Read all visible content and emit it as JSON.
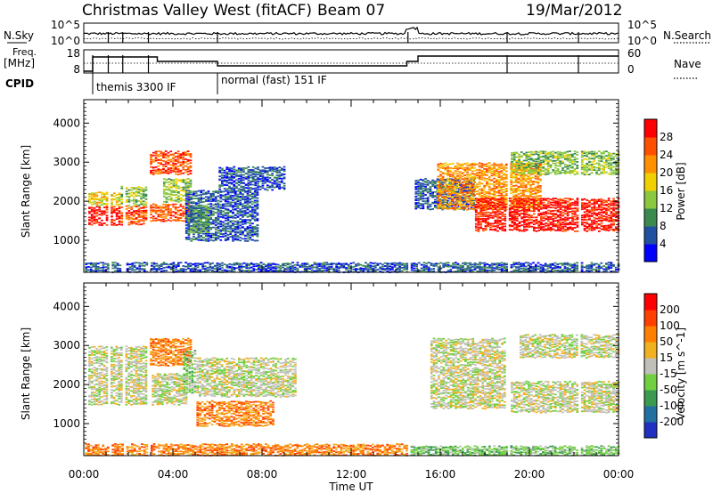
{
  "header": {
    "title": "Christmas Valley West (fitACF)",
    "beam": "Beam 07",
    "date": "19/Mar/2012"
  },
  "params": {
    "nsky_label": "N.Sky",
    "nsearch_label": "N.Search",
    "freq_label_1": "Freq.",
    "freq_label_2": "[MHz]",
    "nave_label": "Nave",
    "cpid_label": "CPID",
    "nsky_ticks": [
      "10^5",
      "10^0"
    ],
    "nsearch_ticks": [
      "10^5",
      "10^0"
    ],
    "freq_ticks": [
      "18",
      "8"
    ],
    "nave_ticks": [
      "60",
      "0"
    ],
    "cpid_modes": [
      {
        "label": "themis 3300 IF",
        "start_hour": 0.4
      },
      {
        "label": "normal (fast) 151 IF",
        "start_hour": 6.0
      }
    ]
  },
  "chart_data": [
    {
      "type": "heatmap",
      "name": "power",
      "ylabel": "Slant Range [km]",
      "ylim": [
        180,
        4600
      ],
      "yticks": [
        1000,
        2000,
        3000,
        4000
      ],
      "xlim": [
        0,
        24
      ],
      "colorbar": {
        "label": "Power [dB]",
        "ticks": [
          "28",
          "24",
          "20",
          "16",
          "12",
          "8",
          "4"
        ],
        "colors": [
          "#0000ff",
          "#2050a0",
          "#3a8a50",
          "#8ac840",
          "#f0d000",
          "#ff9000",
          "#ff5000",
          "#ff0000"
        ]
      },
      "regions": [
        {
          "x": [
            0.15,
            1.6
          ],
          "y": [
            1400,
            1900
          ],
          "level": 7
        },
        {
          "x": [
            0.15,
            1.6
          ],
          "y": [
            1900,
            2250
          ],
          "level": 4
        },
        {
          "x": [
            1.6,
            2.8
          ],
          "y": [
            1400,
            1900
          ],
          "level": 6
        },
        {
          "x": [
            1.6,
            2.8
          ],
          "y": [
            1900,
            2400
          ],
          "level": 3
        },
        {
          "x": [
            2.8,
            4.8
          ],
          "y": [
            1500,
            1950
          ],
          "level": 6
        },
        {
          "x": [
            2.8,
            4.8
          ],
          "y": [
            2700,
            3300
          ],
          "level": 6
        },
        {
          "x": [
            3.5,
            4.8
          ],
          "y": [
            2000,
            2600
          ],
          "level": 3
        },
        {
          "x": [
            4.5,
            7.8
          ],
          "y": [
            1000,
            2300
          ],
          "level": 1
        },
        {
          "x": [
            4.6,
            5.6
          ],
          "y": [
            1200,
            1900
          ],
          "level": 2
        },
        {
          "x": [
            6.0,
            9.0
          ],
          "y": [
            2300,
            2900
          ],
          "level": 1
        },
        {
          "x": [
            14.8,
            17.5
          ],
          "y": [
            1800,
            2600
          ],
          "level": 1
        },
        {
          "x": [
            15.8,
            20.5
          ],
          "y": [
            1800,
            3000
          ],
          "level": 5
        },
        {
          "x": [
            17.5,
            24.0
          ],
          "y": [
            1250,
            2100
          ],
          "level": 7
        },
        {
          "x": [
            19.0,
            24.0
          ],
          "y": [
            2700,
            3300
          ],
          "level": 3
        },
        {
          "x": [
            0.0,
            24.0
          ],
          "y": [
            200,
            450
          ],
          "level": 1
        }
      ],
      "gaps_hours": [
        1.1,
        1.75,
        2.9,
        14.55,
        19.0,
        22.2
      ]
    },
    {
      "type": "heatmap",
      "name": "velocity",
      "ylabel": "Slant Range [km]",
      "ylim": [
        180,
        4600
      ],
      "yticks": [
        1000,
        2000,
        3000,
        4000
      ],
      "xlim": [
        0,
        24
      ],
      "xticks": [
        "00:00",
        "04:00",
        "08:00",
        "12:00",
        "16:00",
        "20:00",
        "00:00"
      ],
      "xlabel": "Time UT",
      "colorbar": {
        "label": "Velocity [m s^-1]",
        "ticks": [
          "200",
          "100",
          "50",
          "15",
          "-15",
          "-50",
          "-100",
          "-200"
        ],
        "colors": [
          "#2030c0",
          "#2070a0",
          "#3a9a50",
          "#70d040",
          "#c0c0b8",
          "#f0b020",
          "#ff8000",
          "#ff4000",
          "#ff0000"
        ]
      },
      "regions": [
        {
          "x": [
            0.15,
            2.8
          ],
          "y": [
            1500,
            3000
          ],
          "level": 4
        },
        {
          "x": [
            2.8,
            4.8
          ],
          "y": [
            2500,
            3200
          ],
          "level": 6
        },
        {
          "x": [
            3.0,
            4.6
          ],
          "y": [
            1500,
            2300
          ],
          "level": 4
        },
        {
          "x": [
            4.4,
            5.0
          ],
          "y": [
            1800,
            2900
          ],
          "level": 3
        },
        {
          "x": [
            5.0,
            8.5
          ],
          "y": [
            950,
            1600
          ],
          "level": 6
        },
        {
          "x": [
            5.0,
            9.5
          ],
          "y": [
            1700,
            2700
          ],
          "level": 4
        },
        {
          "x": [
            15.5,
            19.0
          ],
          "y": [
            1400,
            3200
          ],
          "level": 4
        },
        {
          "x": [
            19.0,
            24.0
          ],
          "y": [
            1300,
            2100
          ],
          "level": 4
        },
        {
          "x": [
            19.5,
            24.0
          ],
          "y": [
            2700,
            3300
          ],
          "level": 4
        },
        {
          "x": [
            0.0,
            14.5
          ],
          "y": [
            200,
            500
          ],
          "level": 6
        },
        {
          "x": [
            14.5,
            24.0
          ],
          "y": [
            200,
            450
          ],
          "level": 3
        }
      ],
      "gaps_hours": [
        1.1,
        1.75,
        2.9,
        14.55,
        19.0,
        22.2
      ]
    }
  ]
}
